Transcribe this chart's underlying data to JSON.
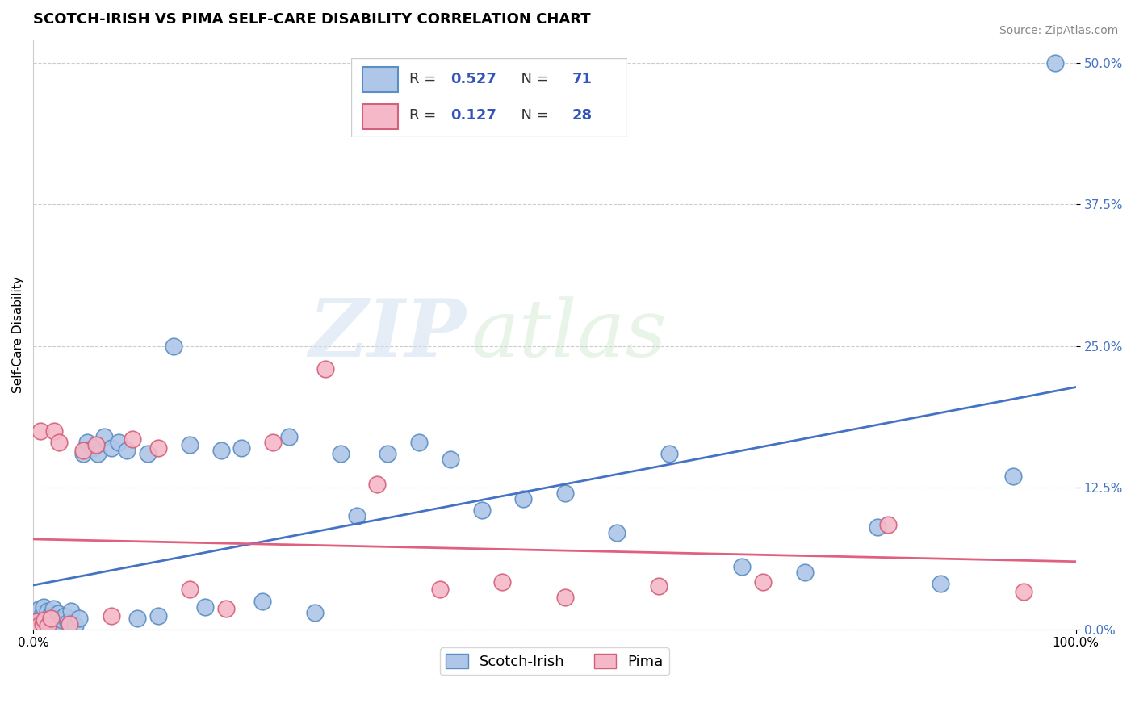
{
  "title": "SCOTCH-IRISH VS PIMA SELF-CARE DISABILITY CORRELATION CHART",
  "source_text": "Source: ZipAtlas.com",
  "ylabel": "Self-Care Disability",
  "watermark_zip": "ZIP",
  "watermark_atlas": "atlas",
  "xlim": [
    0.0,
    1.0
  ],
  "ylim": [
    0.0,
    0.52
  ],
  "yticks": [
    0.0,
    0.125,
    0.25,
    0.375,
    0.5
  ],
  "ytick_labels": [
    "0.0%",
    "12.5%",
    "25.0%",
    "37.5%",
    "50.0%"
  ],
  "xtick_labels": [
    "0.0%",
    "100.0%"
  ],
  "series": [
    {
      "name": "Scotch-Irish",
      "R": 0.527,
      "N": 71,
      "color_face": "#aec6e8",
      "color_edge": "#5b8ec4",
      "line_color": "#4472c4",
      "x": [
        0.001,
        0.002,
        0.002,
        0.003,
        0.003,
        0.004,
        0.004,
        0.005,
        0.005,
        0.006,
        0.006,
        0.007,
        0.007,
        0.008,
        0.009,
        0.01,
        0.01,
        0.011,
        0.012,
        0.013,
        0.014,
        0.015,
        0.016,
        0.017,
        0.018,
        0.019,
        0.02,
        0.022,
        0.024,
        0.026,
        0.028,
        0.03,
        0.033,
        0.036,
        0.04,
        0.044,
        0.048,
        0.052,
        0.057,
        0.062,
        0.068,
        0.075,
        0.082,
        0.09,
        0.1,
        0.11,
        0.12,
        0.135,
        0.15,
        0.165,
        0.18,
        0.2,
        0.22,
        0.245,
        0.27,
        0.295,
        0.31,
        0.34,
        0.37,
        0.4,
        0.43,
        0.47,
        0.51,
        0.56,
        0.61,
        0.68,
        0.74,
        0.81,
        0.87,
        0.94,
        0.98
      ],
      "y": [
        0.003,
        0.005,
        0.008,
        0.002,
        0.012,
        0.004,
        0.015,
        0.003,
        0.01,
        0.006,
        0.018,
        0.004,
        0.008,
        0.002,
        0.014,
        0.005,
        0.02,
        0.003,
        0.01,
        0.006,
        0.016,
        0.004,
        0.012,
        0.003,
        0.008,
        0.018,
        0.005,
        0.01,
        0.014,
        0.004,
        0.008,
        0.012,
        0.006,
        0.016,
        0.003,
        0.01,
        0.155,
        0.165,
        0.16,
        0.155,
        0.17,
        0.16,
        0.165,
        0.158,
        0.01,
        0.155,
        0.012,
        0.25,
        0.163,
        0.02,
        0.158,
        0.16,
        0.025,
        0.17,
        0.015,
        0.155,
        0.1,
        0.155,
        0.165,
        0.15,
        0.105,
        0.115,
        0.12,
        0.085,
        0.155,
        0.055,
        0.05,
        0.09,
        0.04,
        0.135,
        0.5
      ]
    },
    {
      "name": "Pima",
      "R": 0.127,
      "N": 28,
      "color_face": "#f4b8c8",
      "color_edge": "#d4607a",
      "line_color": "#e06080",
      "x": [
        0.002,
        0.003,
        0.005,
        0.007,
        0.009,
        0.011,
        0.014,
        0.017,
        0.02,
        0.025,
        0.035,
        0.048,
        0.06,
        0.075,
        0.095,
        0.12,
        0.15,
        0.185,
        0.23,
        0.28,
        0.33,
        0.39,
        0.45,
        0.51,
        0.6,
        0.7,
        0.82,
        0.95
      ],
      "y": [
        0.003,
        0.007,
        0.003,
        0.175,
        0.005,
        0.008,
        0.003,
        0.01,
        0.175,
        0.165,
        0.005,
        0.158,
        0.163,
        0.012,
        0.168,
        0.16,
        0.035,
        0.018,
        0.165,
        0.23,
        0.128,
        0.035,
        0.042,
        0.028,
        0.038,
        0.042,
        0.092,
        0.033
      ]
    }
  ],
  "legend_R_color": "#3355bb",
  "legend_N_color": "#3355bb",
  "grid_color": "#cccccc",
  "background_color": "#ffffff",
  "title_fontsize": 13,
  "axis_label_fontsize": 11,
  "tick_label_fontsize": 11,
  "legend_fontsize": 13,
  "source_fontsize": 10,
  "ytick_color": "#4472c4"
}
